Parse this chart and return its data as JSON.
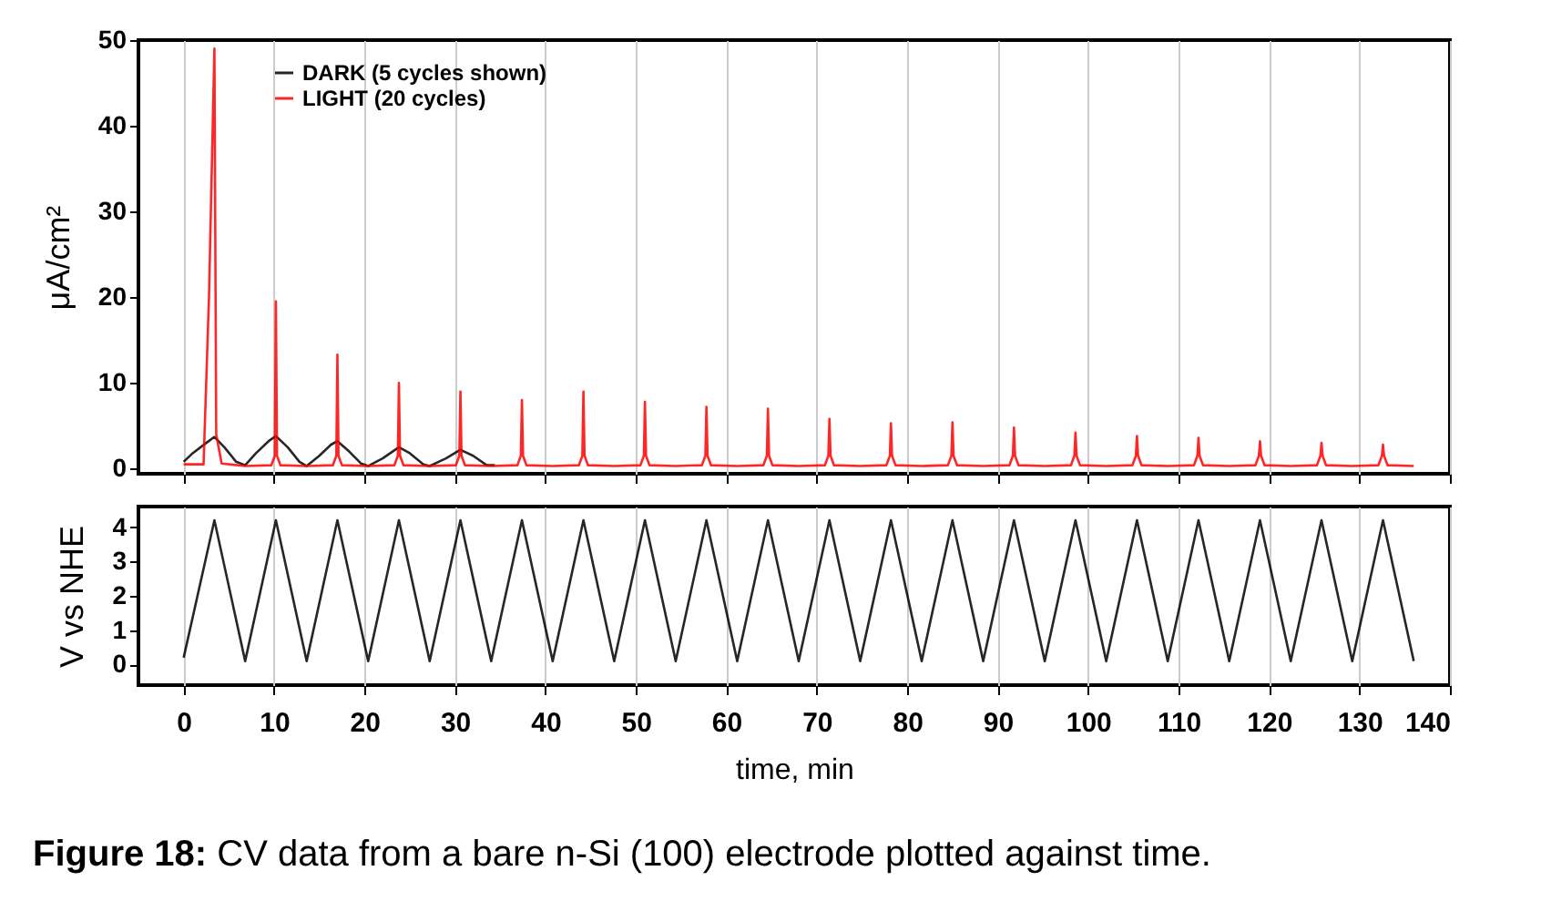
{
  "chart_data": [
    {
      "type": "line",
      "ylabel": "μA/cm²",
      "xlim": [
        -5,
        140
      ],
      "xticks": [
        0,
        10,
        20,
        30,
        40,
        50,
        60,
        70,
        80,
        90,
        100,
        110,
        120,
        130,
        140
      ],
      "ylim": [
        -0.6,
        50
      ],
      "yticks": [
        0,
        10,
        20,
        30,
        40,
        50
      ],
      "grid": "x",
      "legend": "top left",
      "tick_labels": "y",
      "series": [
        {
          "name": "DARK (5 cycles shown)",
          "color": "#000000",
          "x": [
            0,
            1,
            2.5,
            3.4,
            4.5,
            5.8,
            6.8,
            8,
            9.5,
            10.2,
            11.5,
            12.8,
            13.6,
            15,
            16.3,
            17,
            18.3,
            19.6,
            20.4,
            22,
            23.8,
            25,
            26.5,
            27.2,
            29,
            30.6,
            32,
            33.5,
            34.4
          ],
          "values": [
            0.8,
            1.8,
            3.0,
            3.7,
            2.5,
            0.8,
            0.4,
            1.8,
            3.3,
            3.8,
            2.5,
            0.8,
            0.3,
            1.5,
            2.8,
            3.2,
            2.0,
            0.6,
            0.3,
            1.2,
            2.5,
            1.8,
            0.5,
            0.3,
            1.2,
            2.2,
            1.5,
            0.4,
            0.4
          ]
        },
        {
          "name": "LIGHT (20 cycles)",
          "color": "#ff0000",
          "x": [
            0,
            2.2,
            2.8,
            3.4,
            3.6,
            4.2,
            6.8,
            9.7,
            10.08,
            10.2,
            10.32,
            10.7,
            13.6,
            16.5,
            16.88,
            17,
            17.12,
            17.5,
            20.4,
            23.3,
            23.68,
            23.8,
            23.92,
            24.3,
            27.2,
            30.1,
            30.48,
            30.6,
            30.72,
            31.1,
            34,
            36.9,
            37.28,
            37.4,
            37.52,
            37.9,
            40.8,
            43.7,
            44.08,
            44.2,
            44.32,
            44.7,
            47.6,
            50.5,
            50.88,
            51,
            51.12,
            51.5,
            54.4,
            57.3,
            57.68,
            57.8,
            57.92,
            58.3,
            61.2,
            64.1,
            64.48,
            64.6,
            64.72,
            65.1,
            68,
            70.9,
            71.28,
            71.4,
            71.52,
            71.9,
            74.8,
            77.7,
            78.08,
            78.2,
            78.32,
            78.7,
            81.6,
            84.5,
            84.88,
            85,
            85.12,
            85.5,
            88.4,
            91.3,
            91.68,
            91.8,
            91.92,
            92.3,
            95.2,
            98.1,
            98.48,
            98.6,
            98.72,
            99.1,
            102,
            104.9,
            105.28,
            105.4,
            105.52,
            105.9,
            108.8,
            111.7,
            112.08,
            112.2,
            112.32,
            112.7,
            115.6,
            118.5,
            118.88,
            119,
            119.12,
            119.5,
            122.4,
            125.3,
            125.68,
            125.8,
            125.92,
            126.3,
            129.2,
            132.1,
            132.48,
            132.6,
            132.72,
            133.1,
            136
          ],
          "values": [
            0.5,
            0.5,
            20,
            49,
            4,
            0.6,
            0.3,
            0.4,
            1.5,
            19.5,
            1.5,
            0.4,
            0.3,
            0.4,
            1.5,
            13.3,
            1.5,
            0.4,
            0.3,
            0.4,
            1.5,
            10,
            1.5,
            0.4,
            0.3,
            0.4,
            1.5,
            9,
            1.5,
            0.4,
            0.3,
            0.4,
            1.5,
            8,
            1.5,
            0.4,
            0.3,
            0.4,
            1.5,
            9,
            1.5,
            0.4,
            0.3,
            0.4,
            1.5,
            7.8,
            1.5,
            0.4,
            0.3,
            0.4,
            1.5,
            7.2,
            1.5,
            0.4,
            0.3,
            0.4,
            1.5,
            7.0,
            1.5,
            0.4,
            0.3,
            0.4,
            1.5,
            5.8,
            1.5,
            0.4,
            0.3,
            0.4,
            1.5,
            5.3,
            1.5,
            0.4,
            0.3,
            0.4,
            1.5,
            5.4,
            1.5,
            0.4,
            0.3,
            0.4,
            1.5,
            4.8,
            1.5,
            0.4,
            0.3,
            0.4,
            1.5,
            4.2,
            1.5,
            0.4,
            0.3,
            0.4,
            1.5,
            3.8,
            1.5,
            0.4,
            0.3,
            0.4,
            1.5,
            3.6,
            1.5,
            0.4,
            0.3,
            0.4,
            1.5,
            3.2,
            1.5,
            0.4,
            0.3,
            0.4,
            1.5,
            3.0,
            1.5,
            0.4,
            0.3,
            0.4,
            1.5,
            2.8,
            1.5,
            0.4,
            0.3
          ]
        }
      ]
    },
    {
      "type": "line",
      "xlabel": "time, min",
      "ylabel": "V vs NHE",
      "xlim": [
        -5,
        140
      ],
      "xticks": [
        0,
        10,
        20,
        30,
        40,
        50,
        60,
        70,
        80,
        90,
        100,
        110,
        120,
        130,
        140
      ],
      "ylim": [
        -0.6,
        4.6
      ],
      "yticks": [
        0,
        1,
        2,
        3,
        4
      ],
      "grid": "x",
      "color": "#000000",
      "x": [
        0,
        3.4,
        6.8,
        10.2,
        13.6,
        17,
        20.4,
        23.8,
        27.2,
        30.6,
        34,
        37.4,
        40.8,
        44.2,
        47.6,
        51,
        54.4,
        57.8,
        61.2,
        64.6,
        68,
        71.4,
        74.8,
        78.2,
        81.6,
        85,
        88.4,
        91.8,
        95.2,
        98.6,
        102,
        105.4,
        108.8,
        112.2,
        115.6,
        119,
        122.4,
        125.8,
        129.2,
        132.6,
        136
      ],
      "values": [
        0.2,
        4.2,
        0.1,
        4.2,
        0.1,
        4.2,
        0.1,
        4.2,
        0.1,
        4.2,
        0.1,
        4.2,
        0.1,
        4.2,
        0.1,
        4.2,
        0.1,
        4.2,
        0.1,
        4.2,
        0.1,
        4.2,
        0.1,
        4.2,
        0.1,
        4.2,
        0.1,
        4.2,
        0.1,
        4.2,
        0.1,
        4.2,
        0.1,
        4.2,
        0.1,
        4.2,
        0.1,
        4.2,
        0.1,
        4.2,
        0.1
      ],
      "annotations": [
        "Figure 18: CV data from a bare n-Si (100) electrode plotted against time."
      ]
    }
  ]
}
